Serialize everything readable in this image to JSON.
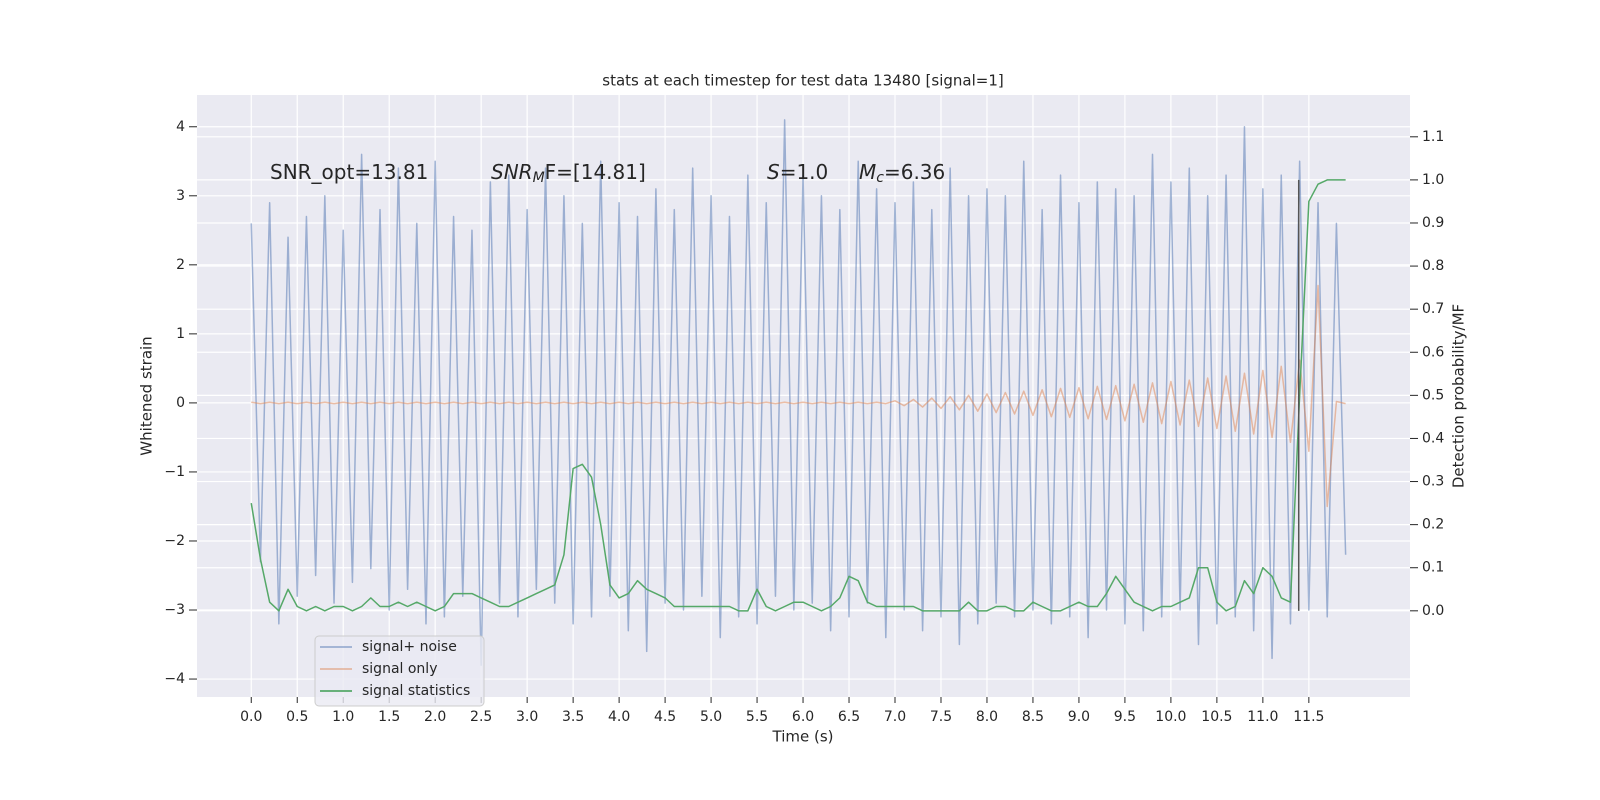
{
  "chart_data": {
    "type": "line",
    "title": "stats at each timestep for test data 13480 [signal=1]",
    "xlabel": "Time (s)",
    "ylabel": "Whitened strain",
    "y2label": "Detection probability/MF",
    "grid": true,
    "legend": "lower left",
    "annotations": [
      {
        "parts": [
          "SNR_opt=13.81"
        ]
      },
      {
        "parts": [
          "SNR",
          "M",
          "F=[14.81]"
        ]
      },
      {
        "parts": [
          "S",
          "=1.0"
        ]
      },
      {
        "parts": [
          "M",
          "c",
          "=6.36"
        ]
      }
    ],
    "vlines": [
      {
        "x": 11.39,
        "ymin": 0,
        "ymax": 1.0,
        "axis": "y2",
        "color": "#555555"
      }
    ],
    "xlim": [
      -0.59,
      12.6
    ],
    "ylim": [
      -4.26,
      4.46
    ],
    "y2lim": [
      -0.2,
      1.197
    ],
    "xticks": [
      {
        "value": 0,
        "label": "0.0"
      },
      {
        "value": 0.5,
        "label": "0.5"
      },
      {
        "value": 1,
        "label": "1.0"
      },
      {
        "value": 1.5,
        "label": "1.5"
      },
      {
        "value": 2,
        "label": "2.0"
      },
      {
        "value": 2.5,
        "label": "2.5"
      },
      {
        "value": 3,
        "label": "3.0"
      },
      {
        "value": 3.5,
        "label": "3.5"
      },
      {
        "value": 4,
        "label": "4.0"
      },
      {
        "value": 4.5,
        "label": "4.5"
      },
      {
        "value": 5,
        "label": "5.0"
      },
      {
        "value": 5.5,
        "label": "5.5"
      },
      {
        "value": 6,
        "label": "6.0"
      },
      {
        "value": 6.5,
        "label": "6.5"
      },
      {
        "value": 7,
        "label": "7.0"
      },
      {
        "value": 7.5,
        "label": "7.5"
      },
      {
        "value": 8,
        "label": "8.0"
      },
      {
        "value": 8.5,
        "label": "8.5"
      },
      {
        "value": 9,
        "label": "9.0"
      },
      {
        "value": 9.5,
        "label": "9.5"
      },
      {
        "value": 10,
        "label": "10.0"
      },
      {
        "value": 10.5,
        "label": "10.5"
      },
      {
        "value": 11,
        "label": "11.0"
      },
      {
        "value": 11.5,
        "label": "11.5"
      }
    ],
    "yticks": [
      {
        "value": -4,
        "label": "−4"
      },
      {
        "value": -3,
        "label": "−3"
      },
      {
        "value": -2,
        "label": "−2"
      },
      {
        "value": -1,
        "label": "−1"
      },
      0,
      1,
      2,
      3,
      4
    ],
    "y2ticks": [
      {
        "value": 0,
        "label": "0.0"
      },
      {
        "value": 0.1,
        "label": "0.1"
      },
      {
        "value": 0.2,
        "label": "0.2"
      },
      {
        "value": 0.3,
        "label": "0.3"
      },
      {
        "value": 0.4,
        "label": "0.4"
      },
      {
        "value": 0.5,
        "label": "0.5"
      },
      {
        "value": 0.6,
        "label": "0.6"
      },
      {
        "value": 0.7,
        "label": "0.7"
      },
      {
        "value": 0.8,
        "label": "0.8"
      },
      {
        "value": 0.9,
        "label": "0.9"
      },
      {
        "value": 1.0,
        "label": "1.0"
      },
      {
        "value": 1.1,
        "label": "1.1"
      }
    ],
    "x": [
      0,
      0.1,
      0.2,
      0.3,
      0.4,
      0.5,
      0.6,
      0.7,
      0.8,
      0.9,
      1,
      1.1,
      1.2,
      1.3,
      1.4,
      1.5,
      1.6,
      1.7,
      1.8,
      1.9,
      2,
      2.1,
      2.2,
      2.3,
      2.4,
      2.5,
      2.6,
      2.7,
      2.8,
      2.9,
      3,
      3.1,
      3.2,
      3.3,
      3.4,
      3.5,
      3.6,
      3.7,
      3.8,
      3.9,
      4,
      4.1,
      4.2,
      4.3,
      4.4,
      4.5,
      4.6,
      4.7,
      4.8,
      4.9,
      5,
      5.1,
      5.2,
      5.3,
      5.4,
      5.5,
      5.6,
      5.7,
      5.8,
      5.9,
      6,
      6.1,
      6.2,
      6.3,
      6.4,
      6.5,
      6.6,
      6.7,
      6.8,
      6.9,
      7,
      7.1,
      7.2,
      7.3,
      7.4,
      7.5,
      7.6,
      7.7,
      7.8,
      7.9,
      8,
      8.1,
      8.2,
      8.3,
      8.4,
      8.5,
      8.6,
      8.7,
      8.8,
      8.9,
      9,
      9.1,
      9.2,
      9.3,
      9.4,
      9.5,
      9.6,
      9.7,
      9.8,
      9.9,
      10,
      10.1,
      10.2,
      10.3,
      10.4,
      10.5,
      10.6,
      10.7,
      10.8,
      10.9,
      11,
      11.1,
      11.2,
      11.3,
      11.4,
      11.5,
      11.6,
      11.7,
      11.8,
      11.9
    ],
    "series": [
      {
        "name": "signal+ noise",
        "color": "#4c72b0",
        "opacity": 0.5,
        "values": [
          2.6,
          -2.3,
          2.9,
          -3.2,
          2.4,
          -2.8,
          2.7,
          -2.5,
          3.0,
          -2.9,
          2.5,
          -2.6,
          3.6,
          -2.4,
          2.8,
          -3.0,
          3.4,
          -2.7,
          2.6,
          -3.2,
          3.5,
          -3.1,
          2.7,
          -2.8,
          2.5,
          -3.8,
          3.2,
          -2.9,
          3.3,
          -3.1,
          2.8,
          -2.7,
          3.4,
          -2.9,
          3.0,
          -3.2,
          2.6,
          -3.1,
          3.5,
          -2.8,
          2.9,
          -3.3,
          2.7,
          -3.6,
          3.1,
          -2.9,
          2.8,
          -3.0,
          3.4,
          -2.8,
          3.0,
          -3.4,
          2.7,
          -3.1,
          3.3,
          -3.2,
          2.9,
          -2.8,
          4.1,
          -3.0,
          3.3,
          -2.9,
          3.0,
          -3.3,
          2.8,
          -3.1,
          3.5,
          -2.9,
          3.1,
          -3.4,
          2.9,
          -3.0,
          3.2,
          -3.3,
          2.8,
          -3.1,
          3.4,
          -3.5,
          3.0,
          -3.2,
          3.1,
          -2.9,
          3.0,
          -3.1,
          3.5,
          -3.0,
          2.8,
          -3.2,
          3.3,
          -3.1,
          2.9,
          -3.4,
          3.2,
          -3.0,
          3.1,
          -3.2,
          3.0,
          -3.3,
          3.6,
          -3.1,
          3.2,
          -3.0,
          3.4,
          -3.5,
          3.0,
          -3.2,
          3.3,
          -3.1,
          4.0,
          -3.3,
          3.1,
          -3.7,
          3.3,
          -3.2,
          3.5,
          -3.0,
          2.9,
          -3.1,
          2.6,
          -2.2
        ]
      },
      {
        "name": "signal only",
        "color": "#dd8452",
        "opacity": 0.5,
        "values": [
          0.01,
          -0.01,
          0.01,
          -0.01,
          0.01,
          -0.01,
          0.01,
          -0.01,
          0.01,
          -0.01,
          0.01,
          -0.01,
          0.01,
          -0.01,
          0.01,
          -0.01,
          0.01,
          -0.01,
          0.01,
          -0.01,
          0.01,
          -0.01,
          0.01,
          -0.01,
          0.01,
          -0.01,
          0.01,
          -0.01,
          0.01,
          -0.01,
          0.01,
          -0.01,
          0.01,
          -0.01,
          0.01,
          -0.01,
          0.01,
          -0.01,
          0.01,
          -0.01,
          0.01,
          -0.01,
          0.01,
          -0.01,
          0.01,
          -0.01,
          0.01,
          -0.01,
          0.01,
          -0.01,
          0.01,
          -0.01,
          0.01,
          -0.01,
          0.01,
          -0.01,
          0.01,
          -0.01,
          0.01,
          -0.01,
          0.01,
          -0.01,
          0.01,
          -0.01,
          0.01,
          -0.01,
          0.01,
          -0.01,
          0.01,
          -0.01,
          0.03,
          -0.04,
          0.05,
          -0.06,
          0.07,
          -0.08,
          0.09,
          -0.1,
          0.11,
          -0.12,
          0.13,
          -0.14,
          0.15,
          -0.16,
          0.17,
          -0.18,
          0.19,
          -0.2,
          0.21,
          -0.21,
          0.22,
          -0.23,
          0.24,
          -0.24,
          0.25,
          -0.26,
          0.27,
          -0.28,
          0.29,
          -0.3,
          0.31,
          -0.32,
          0.33,
          -0.34,
          0.36,
          -0.37,
          0.39,
          -0.41,
          0.43,
          -0.45,
          0.47,
          -0.5,
          0.53,
          -0.57,
          0.62,
          -0.7,
          1.7,
          -1.5,
          0.02,
          -0.01
        ]
      },
      {
        "name": "signal statistics",
        "color": "#55a868",
        "opacity": 1,
        "axis": "y2",
        "values": [
          0.25,
          0.12,
          0.02,
          0.0,
          0.05,
          0.01,
          0.0,
          0.01,
          0.0,
          0.01,
          0.01,
          0.0,
          0.01,
          0.03,
          0.01,
          0.01,
          0.02,
          0.01,
          0.02,
          0.01,
          0.0,
          0.01,
          0.04,
          0.04,
          0.04,
          0.03,
          0.02,
          0.01,
          0.01,
          0.02,
          0.03,
          0.04,
          0.05,
          0.06,
          0.13,
          0.33,
          0.34,
          0.31,
          0.2,
          0.06,
          0.03,
          0.04,
          0.07,
          0.05,
          0.04,
          0.03,
          0.01,
          0.01,
          0.01,
          0.01,
          0.01,
          0.01,
          0.01,
          0.0,
          0.0,
          0.05,
          0.01,
          0.0,
          0.01,
          0.02,
          0.02,
          0.01,
          0.0,
          0.01,
          0.03,
          0.08,
          0.07,
          0.02,
          0.01,
          0.01,
          0.01,
          0.01,
          0.01,
          0.0,
          0.0,
          0.0,
          0.0,
          0.0,
          0.02,
          0.0,
          0.0,
          0.01,
          0.01,
          0.0,
          0.0,
          0.02,
          0.01,
          0.0,
          0.0,
          0.01,
          0.02,
          0.01,
          0.01,
          0.04,
          0.08,
          0.05,
          0.02,
          0.01,
          0.0,
          0.01,
          0.01,
          0.02,
          0.03,
          0.1,
          0.1,
          0.02,
          0.0,
          0.01,
          0.07,
          0.04,
          0.1,
          0.08,
          0.03,
          0.02,
          0.5,
          0.95,
          0.99,
          1.0,
          1.0,
          1.0
        ]
      }
    ]
  }
}
